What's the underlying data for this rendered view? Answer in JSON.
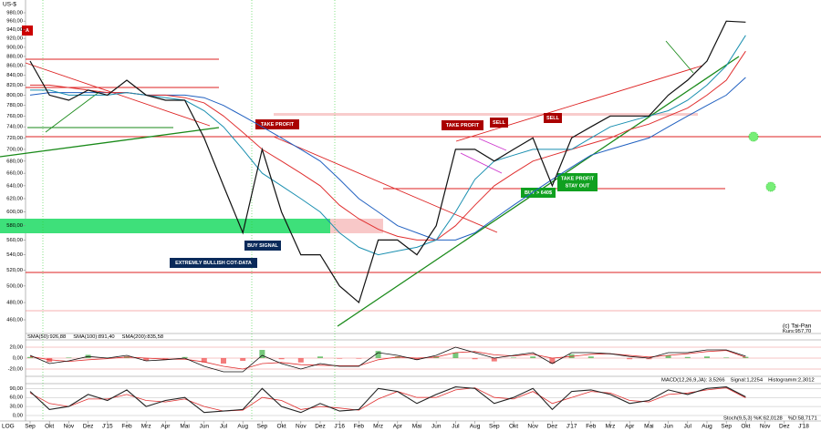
{
  "chart_data": [
    {
      "type": "line",
      "y_unit": "US-$",
      "scale_label": "LOG",
      "log": true,
      "categories": [
        "Sep",
        "Okt",
        "Nov",
        "Dez",
        "J'15",
        "Feb",
        "Mrz",
        "Apr",
        "Mai",
        "Jun",
        "Jul",
        "Aug",
        "Sep",
        "Okt",
        "Nov",
        "Dez",
        "J'16",
        "Feb",
        "Mrz",
        "Apr",
        "Mai",
        "Jun",
        "Jul",
        "Aug",
        "Sep",
        "Okt",
        "Nov",
        "Dez",
        "J'17",
        "Feb",
        "Mrz",
        "Apr",
        "Mai",
        "Jun",
        "Jul",
        "Aug",
        "Sep",
        "Okt",
        "Nov",
        "Dez",
        "J'18"
      ],
      "series": [
        {
          "name": "Kurs:957,70",
          "color": "#111111",
          "values": [
            870,
            800,
            790,
            810,
            800,
            830,
            800,
            790,
            790,
            720,
            640,
            570,
            700,
            600,
            540,
            540,
            500,
            480,
            560,
            560,
            540,
            580,
            700,
            700,
            680,
            700,
            720,
            640,
            720,
            740,
            760,
            760,
            760,
            800,
            830,
            870,
            960,
            957.7,
            null,
            null,
            null
          ]
        },
        {
          "name": "SMA(50):926,88",
          "color": "#1a8fb0",
          "values": [
            810,
            810,
            800,
            800,
            800,
            805,
            800,
            795,
            790,
            770,
            740,
            700,
            660,
            640,
            620,
            600,
            570,
            550,
            540,
            545,
            550,
            560,
            600,
            650,
            680,
            690,
            700,
            700,
            700,
            720,
            740,
            750,
            760,
            770,
            790,
            820,
            860,
            926.88,
            null,
            null,
            null
          ]
        },
        {
          "name": "SMA(100):891,40",
          "color": "#e03030",
          "values": [
            820,
            820,
            815,
            810,
            805,
            805,
            800,
            800,
            795,
            785,
            760,
            730,
            700,
            680,
            660,
            640,
            610,
            590,
            575,
            565,
            560,
            560,
            580,
            610,
            640,
            660,
            680,
            690,
            700,
            710,
            720,
            735,
            745,
            760,
            775,
            800,
            830,
            891.4,
            null,
            null,
            null
          ]
        },
        {
          "name": "SMA(200):835,58",
          "color": "#2060c0",
          "values": [
            800,
            805,
            805,
            805,
            805,
            805,
            800,
            800,
            800,
            795,
            780,
            760,
            740,
            720,
            700,
            680,
            650,
            620,
            600,
            580,
            570,
            560,
            560,
            570,
            590,
            610,
            630,
            650,
            670,
            690,
            700,
            710,
            720,
            740,
            760,
            780,
            800,
            835.58,
            null,
            null,
            null
          ]
        }
      ],
      "ylim": [
        460,
        980
      ],
      "yticks": [
        {
          "value": 460,
          "label": "460,00"
        },
        {
          "value": 480,
          "label": "480,00"
        },
        {
          "value": 500,
          "label": "500,00"
        },
        {
          "value": 520,
          "label": "520,00"
        },
        {
          "value": 540,
          "label": "540,00"
        },
        {
          "value": 560,
          "label": "560,00"
        },
        {
          "value": 580,
          "label": "580,00"
        },
        {
          "value": 600,
          "label": "600,00"
        },
        {
          "value": 620,
          "label": "620,00"
        },
        {
          "value": 640,
          "label": "640,00"
        },
        {
          "value": 660,
          "label": "660,00"
        },
        {
          "value": 680,
          "label": "680,00"
        },
        {
          "value": 700,
          "label": "700,00"
        },
        {
          "value": 720,
          "label": "720,00"
        },
        {
          "value": 740,
          "label": "740,00"
        },
        {
          "value": 760,
          "label": "760,00"
        },
        {
          "value": 780,
          "label": "780,00"
        },
        {
          "value": 800,
          "label": "800,00"
        },
        {
          "value": 820,
          "label": "820,00"
        },
        {
          "value": 840,
          "label": "840,00"
        },
        {
          "value": 860,
          "label": "860,00"
        },
        {
          "value": 880,
          "label": "880,00"
        },
        {
          "value": 900,
          "label": "900,00"
        },
        {
          "value": 920,
          "label": "920,00"
        },
        {
          "value": 940,
          "label": "940,00"
        },
        {
          "value": 960,
          "label": "960,00"
        },
        {
          "value": 980,
          "label": "980,00"
        }
      ],
      "annotations": [
        "A",
        "TAKE PROFIT",
        "TAKE PROFIT",
        "SELL",
        "SELL",
        "BUY SIGNAL",
        "EXTREMLY BULLISH COT-DATA",
        "BUY > 640$",
        "TAKE PROFIT",
        "STAY OUT"
      ],
      "copyright": "(c) Tai-Pan"
    },
    {
      "type": "macd",
      "series": [
        {
          "name": "MACD(12,26,9,JA): 3,5266",
          "color": "#111111",
          "values": [
            5,
            -10,
            -5,
            3,
            0,
            5,
            -5,
            -3,
            0,
            -15,
            -25,
            -25,
            5,
            -10,
            -20,
            -10,
            -15,
            -15,
            10,
            5,
            -3,
            5,
            20,
            10,
            0,
            5,
            10,
            -10,
            10,
            10,
            8,
            3,
            0,
            10,
            10,
            15,
            15,
            3.5266,
            null,
            null,
            null
          ]
        },
        {
          "name": "Signal:1,2254",
          "color": "#e03030",
          "values": [
            3,
            -3,
            -6,
            -3,
            -1,
            2,
            0,
            -2,
            -2,
            -7,
            -15,
            -20,
            -10,
            -8,
            -12,
            -13,
            -14,
            -14,
            -3,
            2,
            0,
            2,
            10,
            12,
            6,
            4,
            7,
            0,
            3,
            7,
            8,
            5,
            2,
            5,
            8,
            12,
            14,
            1.2254,
            null,
            null,
            null
          ]
        },
        {
          "name": "Histogramm:2,3012",
          "color": "#3cb043",
          "values": [
            2,
            -7,
            1,
            6,
            1,
            3,
            -5,
            -1,
            2,
            -8,
            -10,
            -5,
            15,
            -2,
            -8,
            3,
            -1,
            -1,
            13,
            3,
            -3,
            3,
            10,
            -2,
            -6,
            1,
            3,
            -10,
            7,
            3,
            0,
            -2,
            -2,
            5,
            2,
            3,
            1,
            2.3012,
            null,
            null,
            null
          ]
        }
      ],
      "ylim": [
        -30,
        30
      ],
      "yticks": [
        {
          "value": 20,
          "label": "20,00"
        },
        {
          "value": 0,
          "label": "0,00"
        },
        {
          "value": -20,
          "label": "-20,00"
        }
      ]
    },
    {
      "type": "stochastic",
      "series": [
        {
          "name": "Stoch(9,5,3) %K:62,0128",
          "color": "#222222",
          "values": [
            80,
            20,
            30,
            70,
            50,
            85,
            30,
            50,
            60,
            10,
            15,
            20,
            90,
            30,
            10,
            40,
            15,
            20,
            90,
            80,
            40,
            70,
            95,
            90,
            40,
            60,
            90,
            20,
            80,
            85,
            70,
            40,
            50,
            85,
            70,
            90,
            95,
            62.0128,
            null,
            null,
            null
          ]
        },
        {
          "name": "%D:58,7171",
          "color": "#e03030",
          "values": [
            75,
            40,
            30,
            55,
            55,
            70,
            50,
            45,
            55,
            30,
            15,
            18,
            60,
            50,
            20,
            30,
            25,
            18,
            55,
            80,
            60,
            60,
            85,
            92,
            60,
            55,
            80,
            40,
            60,
            80,
            75,
            50,
            45,
            70,
            75,
            85,
            92,
            58.7171,
            null,
            null,
            null
          ]
        }
      ],
      "ylim": [
        0,
        100
      ],
      "yticks": [
        {
          "value": 90,
          "label": "90,00"
        },
        {
          "value": 60,
          "label": "60,00"
        },
        {
          "value": 30,
          "label": "30,00"
        },
        {
          "value": 0,
          "label": "0,00"
        }
      ]
    }
  ]
}
